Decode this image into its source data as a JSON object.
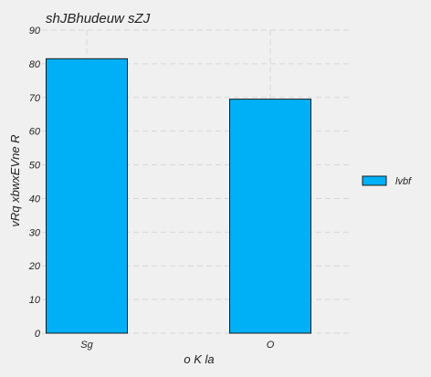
{
  "chart_data": {
    "type": "bar",
    "title": "shJBhudeuw sZJ",
    "xlabel": "o K la",
    "ylabel": "vRq xbwxEVne R",
    "categories": [
      "Sg",
      "O"
    ],
    "series": [
      {
        "name": "lvbf",
        "values": [
          81.5,
          69.5
        ]
      }
    ],
    "ylim": [
      0,
      90
    ],
    "yticks": [
      0,
      10,
      20,
      30,
      40,
      50,
      60,
      70,
      80,
      90
    ],
    "grid": true,
    "legend_position": "right",
    "colors": {
      "bar": "#00b0f6",
      "bar_edge": "#1a1a1a",
      "background": "#f0f0f0",
      "grid": "#d6d6d6"
    }
  }
}
